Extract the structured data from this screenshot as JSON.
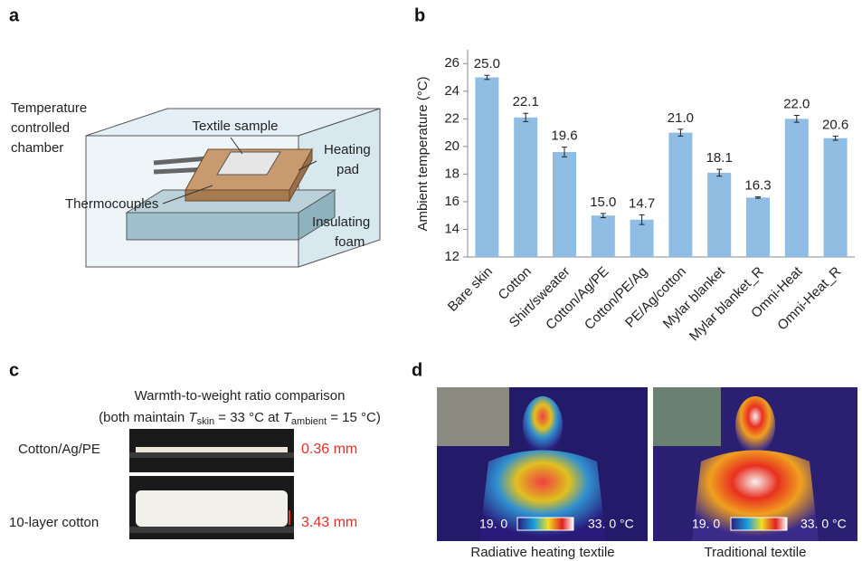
{
  "panel_labels": [
    "a",
    "b",
    "c",
    "d"
  ],
  "diagram": {
    "chamber": [
      "Temperature",
      "controlled",
      "chamber"
    ],
    "textile_sample": "Textile sample",
    "heating_pad": [
      "Heating",
      "pad"
    ],
    "thermocouples": "Thermocouples",
    "insulating_foam": [
      "Insulating",
      "foam"
    ]
  },
  "chart_data": {
    "type": "bar",
    "y_label": "Ambient temperature (°C)",
    "categories": [
      "Bare skin",
      "Cotton",
      "Shirt/sweater",
      "Cotton/Ag/PE",
      "Cotton/PE/Ag",
      "PE/Ag/cotton",
      "Mylar blanket",
      "Mylar blanket_R",
      "Omni-Heat",
      "Omni-Heat_R"
    ],
    "values": [
      25.0,
      22.1,
      19.6,
      15.0,
      14.7,
      21.0,
      18.1,
      16.3,
      22.0,
      20.6
    ],
    "value_labels": [
      "25.0",
      "22.1",
      "19.6",
      "15.0",
      "14.7",
      "21.0",
      "18.1",
      "16.3",
      "22.0",
      "20.6"
    ],
    "errors": [
      0.15,
      0.3,
      0.35,
      0.15,
      0.35,
      0.25,
      0.25,
      0.05,
      0.25,
      0.15
    ],
    "color": "#8fbde3",
    "ylim": [
      12,
      27
    ],
    "yticks": [
      12,
      14,
      16,
      18,
      20,
      22,
      24,
      26
    ]
  },
  "comparison": {
    "title": "Warmth-to-weight ratio comparison",
    "subtitle": [
      "(both maintain ",
      "T",
      "skin",
      " = 33 °C at ",
      "T",
      "ambient",
      " = 15 °C)"
    ],
    "samples": [
      {
        "label": "Cotton/Ag/PE",
        "thickness": "0.36 mm"
      },
      {
        "label": "10-layer cotton",
        "thickness": "3.43 mm"
      }
    ]
  },
  "thermal": {
    "images": [
      {
        "caption": "Radiative heating textile",
        "scale_min": "19. 0",
        "scale_max": "33. 0 °C"
      },
      {
        "caption": "Traditional textile",
        "scale_min": "19. 0",
        "scale_max": "33. 0 °C"
      }
    ]
  }
}
